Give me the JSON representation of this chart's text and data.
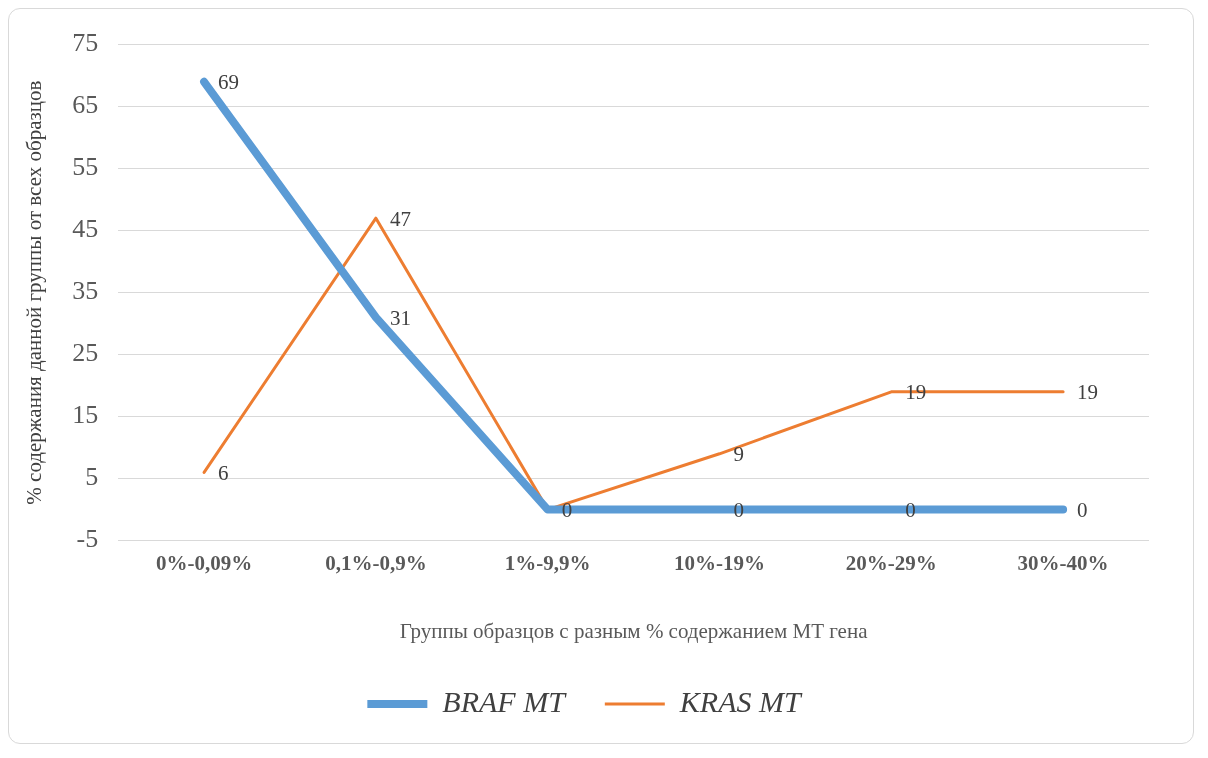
{
  "chart_data": {
    "type": "line",
    "xlabel": "Группы образцов с разным % содержанием МТ гена",
    "ylabel": "% содержания данной группы от всех образцов",
    "categories": [
      "0%-0,09%",
      "0,1%-0,9%",
      "1%-9,9%",
      "10%-19%",
      "20%-29%",
      "30%-40%"
    ],
    "series": [
      {
        "name": "BRAF MT",
        "color": "#5b9bd5",
        "values": [
          69,
          31,
          0,
          0,
          0,
          0
        ],
        "value_labels": [
          "69",
          "31",
          "0",
          "0",
          "0",
          "0"
        ]
      },
      {
        "name": "KRAS MT",
        "color": "#ed7d31",
        "values": [
          6,
          47,
          0,
          9,
          19,
          19
        ],
        "value_labels": [
          "6",
          "47",
          null,
          "9",
          "19",
          "19"
        ]
      }
    ],
    "ylim": [
      -5,
      75
    ],
    "yticks": [
      -5,
      5,
      15,
      25,
      35,
      45,
      55,
      65,
      75
    ],
    "grid": "y",
    "legend": "bottom",
    "marker": "none",
    "line_style": "solid"
  }
}
